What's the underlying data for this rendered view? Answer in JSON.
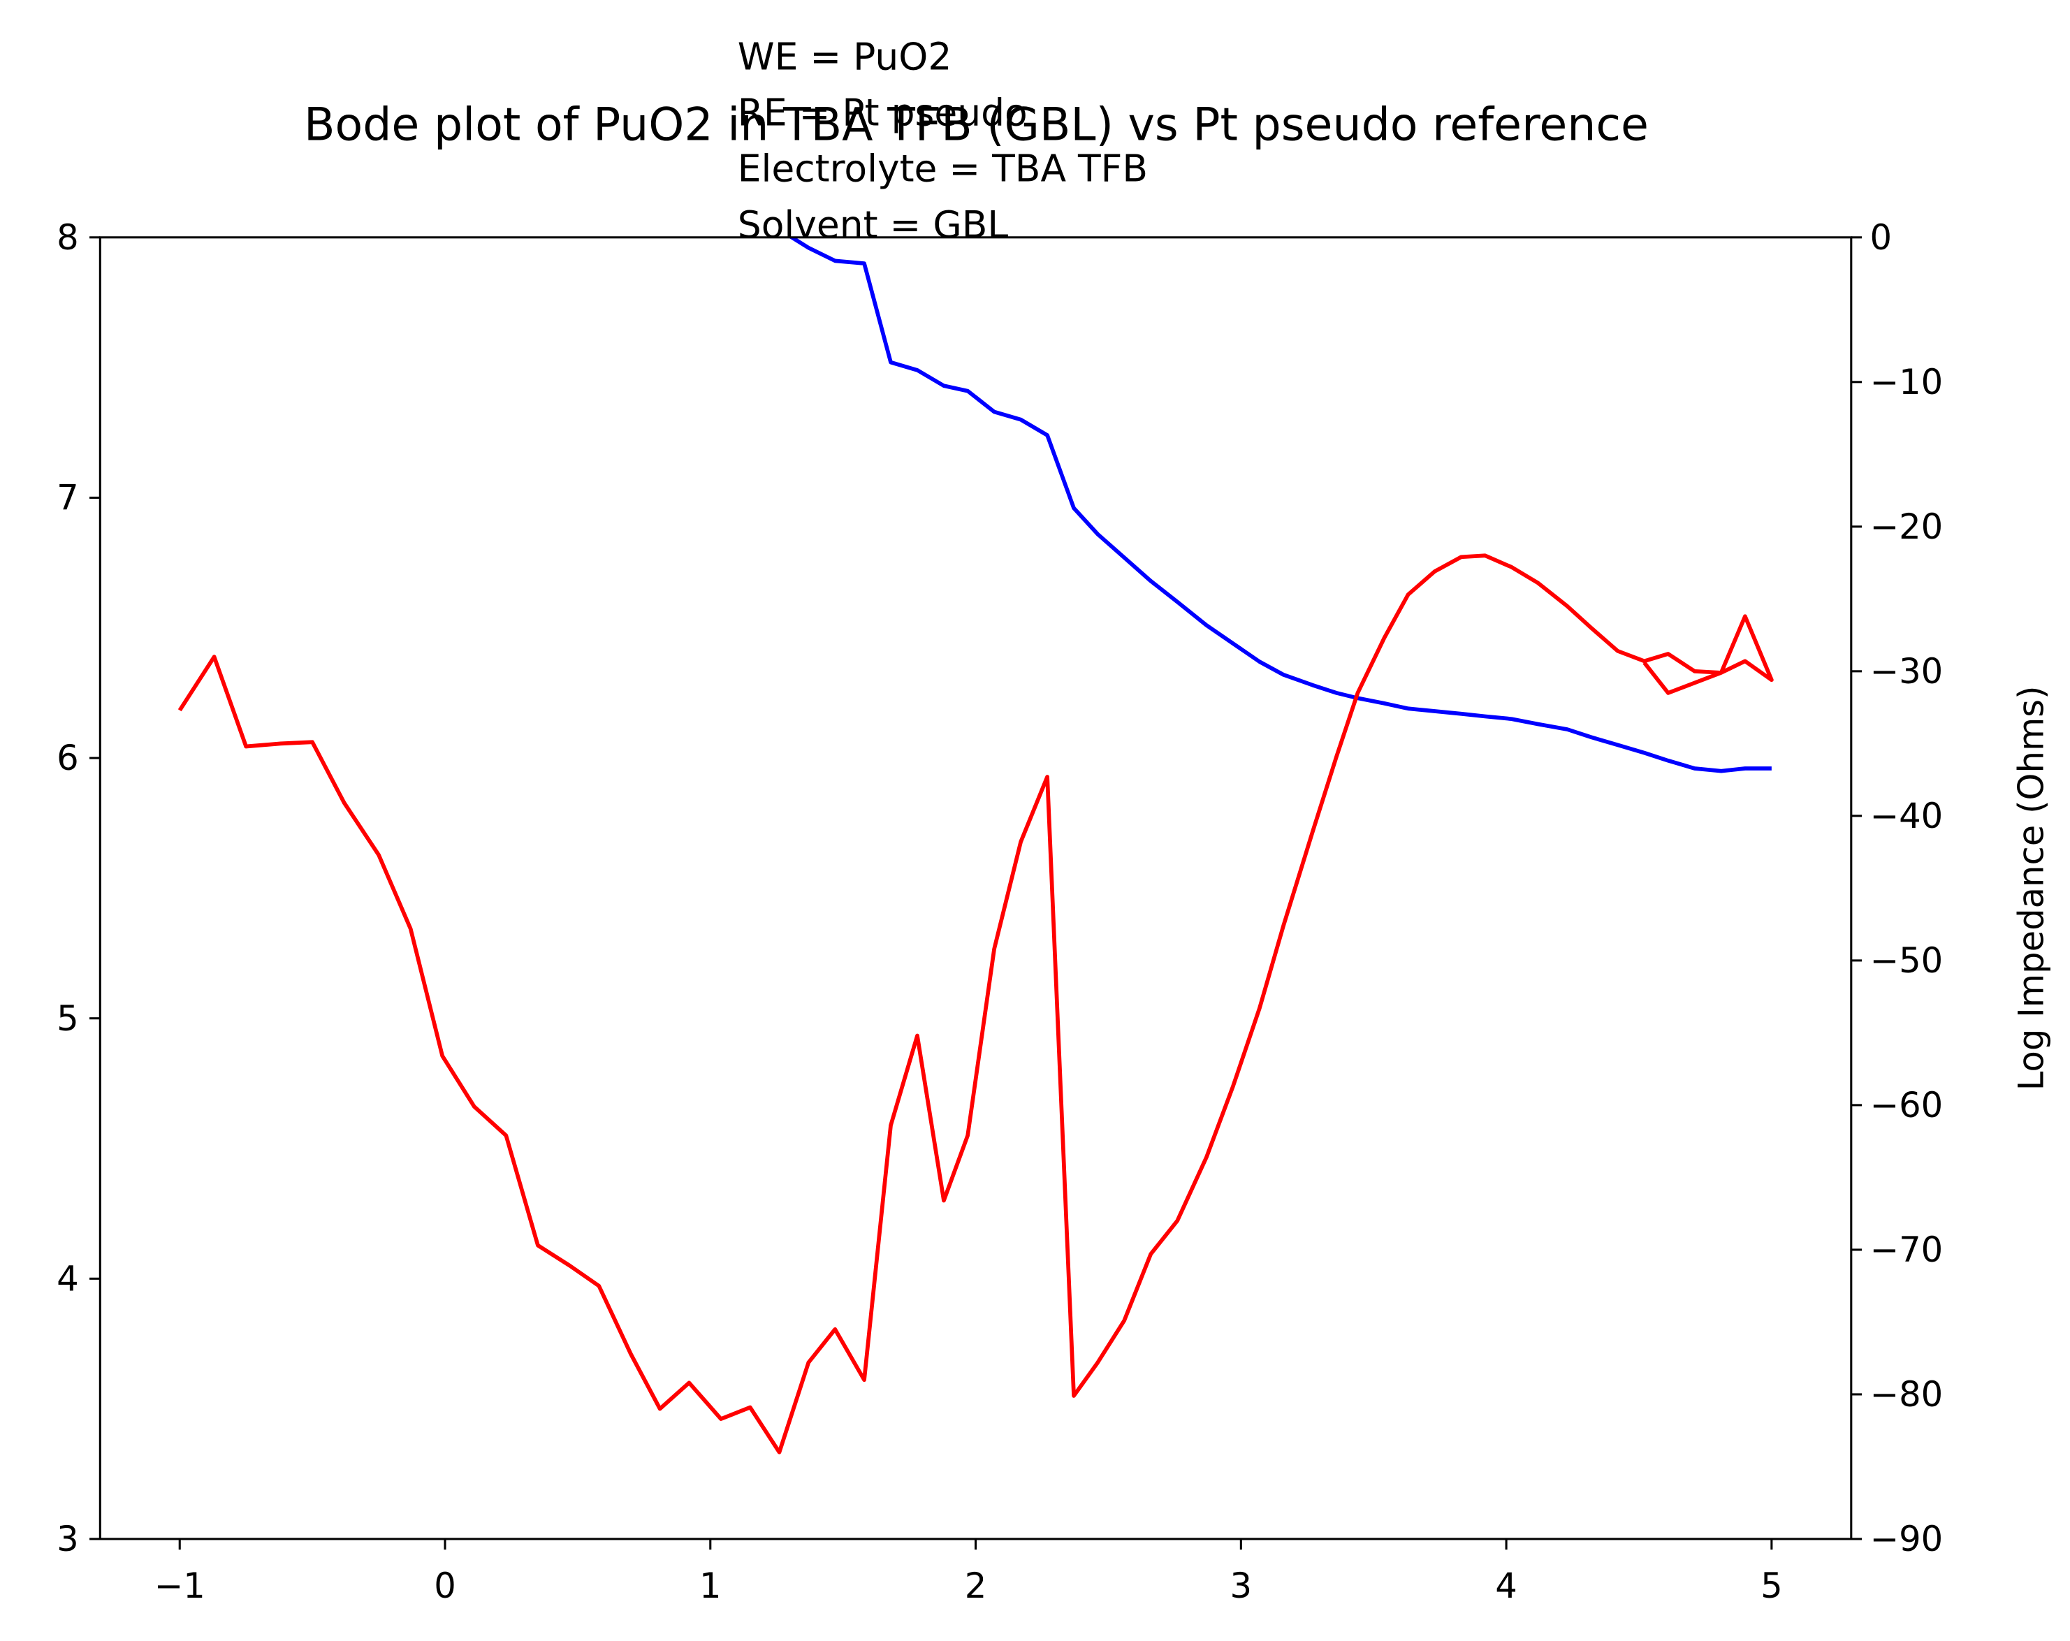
{
  "chart_data": {
    "type": "line",
    "title": "Bode plot of PuO2 in TBA TFB (GBL) vs Pt pseudo reference",
    "annotations": [
      "WE = PuO2",
      "RE = Pt pseudo",
      "Electrolyte = TBA TFB",
      "Solvent = GBL"
    ],
    "y2label": "Log Impedance (Ohms)",
    "xlim": [
      -1.3,
      5.3
    ],
    "xticks": [
      {
        "value": -1,
        "label": "−1"
      },
      0,
      1,
      2,
      3,
      4,
      5
    ],
    "ylim": [
      3,
      8
    ],
    "yticks": [
      3,
      4,
      5,
      6,
      7,
      8
    ],
    "y2lim": [
      -90,
      0
    ],
    "y2ticks": [
      {
        "value": -90,
        "label": "−90"
      },
      {
        "value": -80,
        "label": "−80"
      },
      {
        "value": -70,
        "label": "−70"
      },
      {
        "value": -60,
        "label": "−60"
      },
      {
        "value": -50,
        "label": "−50"
      },
      {
        "value": -40,
        "label": "−40"
      },
      {
        "value": -30,
        "label": "−30"
      },
      {
        "value": -20,
        "label": "−20"
      },
      {
        "value": -10,
        "label": "−10"
      },
      0
    ],
    "series": [
      {
        "color": "#0000ff",
        "axis": "y",
        "x": [
          1.26,
          1.37,
          1.47,
          1.58,
          1.68,
          1.78,
          1.88,
          1.97,
          2.07,
          2.17,
          2.27,
          2.37,
          2.46,
          2.56,
          2.66,
          2.76,
          2.87,
          2.97,
          3.07,
          3.16,
          3.27,
          3.36,
          3.44,
          3.54,
          3.63,
          3.73,
          3.83,
          3.92,
          4.02,
          4.12,
          4.23,
          4.32,
          4.42,
          4.52,
          4.61,
          4.71,
          4.81,
          4.9,
          5.0
        ],
        "values": [
          8.03,
          7.96,
          7.91,
          7.9,
          7.52,
          7.49,
          7.43,
          7.41,
          7.33,
          7.3,
          7.24,
          6.96,
          6.86,
          6.77,
          6.68,
          6.6,
          6.51,
          6.44,
          6.37,
          6.32,
          6.28,
          6.25,
          6.23,
          6.21,
          6.19,
          6.18,
          6.17,
          6.16,
          6.15,
          6.13,
          6.11,
          6.08,
          6.05,
          6.02,
          5.99,
          5.96,
          5.95,
          5.96,
          5.96
        ]
      },
      {
        "color": "#ff0000",
        "axis": "y2",
        "x": [
          -1.0,
          -0.87,
          -0.75,
          -0.62,
          -0.5,
          -0.38,
          -0.25,
          -0.13,
          -0.01,
          0.11,
          0.23,
          0.35,
          0.47,
          0.58,
          0.7,
          0.81,
          0.92,
          1.04,
          1.15,
          1.26,
          1.37,
          1.47,
          1.58,
          1.68,
          1.78,
          1.88,
          1.97,
          2.07,
          2.17,
          2.27,
          2.37,
          2.46,
          2.56,
          2.66,
          2.76,
          2.87,
          2.97,
          3.07,
          3.16,
          3.27,
          3.36,
          3.44,
          3.54,
          3.63,
          3.73,
          3.83,
          3.92,
          4.02,
          4.12,
          4.23,
          4.32,
          4.42,
          4.52,
          4.61,
          4.71,
          4.81,
          4.9,
          5.0,
          4.9,
          4.81,
          4.61,
          4.52
        ],
        "values": [
          -32.7,
          -29.0,
          -35.2,
          -35.0,
          -34.9,
          -39.1,
          -42.7,
          -47.8,
          -56.6,
          -60.1,
          -62.1,
          -69.7,
          -71.1,
          -72.5,
          -77.2,
          -81.0,
          -79.2,
          -81.7,
          -80.9,
          -84.0,
          -77.8,
          -75.5,
          -79.0,
          -61.4,
          -55.2,
          -66.6,
          -62.1,
          -49.2,
          -41.8,
          -37.3,
          -80.1,
          -77.8,
          -74.9,
          -70.3,
          -68.0,
          -63.6,
          -58.7,
          -53.3,
          -47.6,
          -41.1,
          -35.9,
          -31.5,
          -27.7,
          -24.7,
          -23.1,
          -22.1,
          -22.0,
          -22.8,
          -23.9,
          -25.5,
          -27.0,
          -28.6,
          -29.3,
          -28.8,
          -30.0,
          -30.1,
          -29.3,
          -30.6,
          -26.2,
          -30.1,
          -31.5,
          -29.4
        ]
      }
    ]
  }
}
